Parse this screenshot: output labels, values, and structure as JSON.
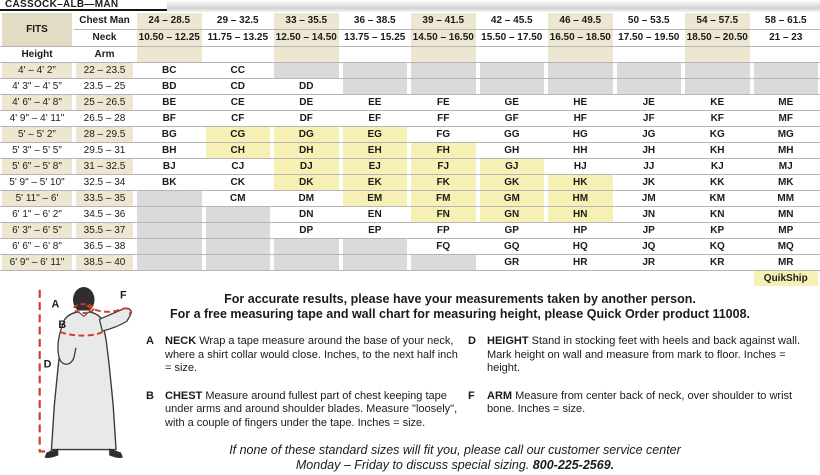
{
  "page": {
    "title": "CASSOCK–ALB—MAN"
  },
  "colors": {
    "header_beige": "#ede7d2",
    "fits_beige": "#e2dcc4",
    "quickship_yellow": "#f7f0b5",
    "na_gray": "#dadada",
    "row_line": "#b6b6b6",
    "measure_red": "#d43a26"
  },
  "table": {
    "fits_label": "FITS",
    "chest_label": "Chest Man",
    "neck_label": "Neck",
    "height_label": "Height",
    "arm_label": "Arm",
    "quickship_label": "QuikShip",
    "columns": [
      {
        "chest": "24 – 28.5",
        "neck": "10.50 – 12.25"
      },
      {
        "chest": "29 – 32.5",
        "neck": "11.75 – 13.25"
      },
      {
        "chest": "33 – 35.5",
        "neck": "12.50 – 14.50"
      },
      {
        "chest": "36 – 38.5",
        "neck": "13.75 – 15.25"
      },
      {
        "chest": "39 – 41.5",
        "neck": "14.50 – 16.50"
      },
      {
        "chest": "42 – 45.5",
        "neck": "15.50 – 17.50"
      },
      {
        "chest": "46 – 49.5",
        "neck": "16.50 – 18.50"
      },
      {
        "chest": "50 – 53.5",
        "neck": "17.50 – 19.50"
      },
      {
        "chest": "54 – 57.5",
        "neck": "18.50 – 20.50"
      },
      {
        "chest": "58 – 61.5",
        "neck": "21 – 23"
      }
    ],
    "rows": [
      {
        "height": "4' – 4' 2\"",
        "arm": "22 – 23.5",
        "cells": [
          "BC",
          "CC",
          null,
          null,
          null,
          null,
          null,
          null,
          null,
          null
        ]
      },
      {
        "height": "4' 3\" – 4' 5\"",
        "arm": "23.5 – 25",
        "cells": [
          "BD",
          "CD",
          "DD",
          null,
          null,
          null,
          null,
          null,
          null,
          null
        ]
      },
      {
        "height": "4' 6\" – 4' 8\"",
        "arm": "25 – 26.5",
        "cells": [
          "BE",
          "CE",
          "DE",
          "EE",
          "FE",
          "GE",
          "HE",
          "JE",
          "KE",
          "ME"
        ]
      },
      {
        "height": "4' 9\" – 4' 11\"",
        "arm": "26.5 – 28",
        "cells": [
          "BF",
          "CF",
          "DF",
          "EF",
          "FF",
          "GF",
          "HF",
          "JF",
          "KF",
          "MF"
        ]
      },
      {
        "height": "5' – 5' 2\"",
        "arm": "28 – 29.5",
        "cells": [
          "BG",
          "CG",
          "DG",
          "EG",
          "FG",
          "GG",
          "HG",
          "JG",
          "KG",
          "MG"
        ]
      },
      {
        "height": "5' 3\" – 5' 5\"",
        "arm": "29.5 – 31",
        "cells": [
          "BH",
          "CH",
          "DH",
          "EH",
          "FH",
          "GH",
          "HH",
          "JH",
          "KH",
          "MH"
        ]
      },
      {
        "height": "5' 6\" – 5' 8\"",
        "arm": "31 – 32.5",
        "cells": [
          "BJ",
          "CJ",
          "DJ",
          "EJ",
          "FJ",
          "GJ",
          "HJ",
          "JJ",
          "KJ",
          "MJ"
        ]
      },
      {
        "height": "5' 9\" – 5' 10\"",
        "arm": "32.5 – 34",
        "cells": [
          "BK",
          "CK",
          "DK",
          "EK",
          "FK",
          "GK",
          "HK",
          "JK",
          "KK",
          "MK"
        ]
      },
      {
        "height": "5' 11\" – 6'",
        "arm": "33.5 – 35",
        "cells": [
          null,
          "CM",
          "DM",
          "EM",
          "FM",
          "GM",
          "HM",
          "JM",
          "KM",
          "MM"
        ]
      },
      {
        "height": "6' 1\" – 6' 2\"",
        "arm": "34.5 – 36",
        "cells": [
          null,
          null,
          "DN",
          "EN",
          "FN",
          "GN",
          "HN",
          "JN",
          "KN",
          "MN"
        ]
      },
      {
        "height": "6' 3\" – 6' 5\"",
        "arm": "35.5 – 37",
        "cells": [
          null,
          null,
          "DP",
          "EP",
          "FP",
          "GP",
          "HP",
          "JP",
          "KP",
          "MP"
        ]
      },
      {
        "height": "6' 6\" – 6' 8\"",
        "arm": "36.5 – 38",
        "cells": [
          null,
          null,
          null,
          null,
          "FQ",
          "GQ",
          "HQ",
          "JQ",
          "KQ",
          "MQ"
        ]
      },
      {
        "height": "6' 9\" – 6' 11\"",
        "arm": "38.5 – 40",
        "cells": [
          null,
          null,
          null,
          null,
          null,
          "GR",
          "HR",
          "JR",
          "KR",
          "MR"
        ]
      }
    ],
    "quickship_codes": [
      "CG",
      "DG",
      "EG",
      "CH",
      "DH",
      "EH",
      "FH",
      "DJ",
      "EJ",
      "FJ",
      "GJ",
      "DK",
      "EK",
      "FK",
      "GK",
      "HK",
      "EM",
      "FM",
      "GM",
      "HM",
      "FN",
      "GN",
      "HN"
    ]
  },
  "notes": {
    "line1": "For accurate results, please have your measurements taken by another person.",
    "line2": "For a free measuring tape and wall chart for measuring height, please Quick Order product 11008."
  },
  "instructions": [
    {
      "letter": "A",
      "term": "NECK",
      "text": "Wrap a tape measure around the base of your neck, where a shirt collar would close. Inches, to the next half inch = size."
    },
    {
      "letter": "D",
      "term": "HEIGHT",
      "text": "Stand in stocking feet with heels and back against wall. Mark height on wall and measure from mark to floor. Inches = height."
    },
    {
      "letter": "B",
      "term": "CHEST",
      "text": "Measure around fullest part of chest keeping tape under arms and around shoulder blades. Measure \"loosely\", with a couple of fingers under the tape. Inches = size."
    },
    {
      "letter": "F",
      "term": "ARM",
      "text": "Measure from center back of neck, over shoulder to wrist bone. Inches = size."
    }
  ],
  "footer": {
    "line1": "If none of these standard sizes will fit you, please call our customer service center",
    "line2": "Monday – Friday to discuss special sizing.",
    "phone": "800-225-2569."
  },
  "figure": {
    "label_neck": "A",
    "label_arm": "F",
    "label_chest": "B",
    "label_height": "D"
  }
}
